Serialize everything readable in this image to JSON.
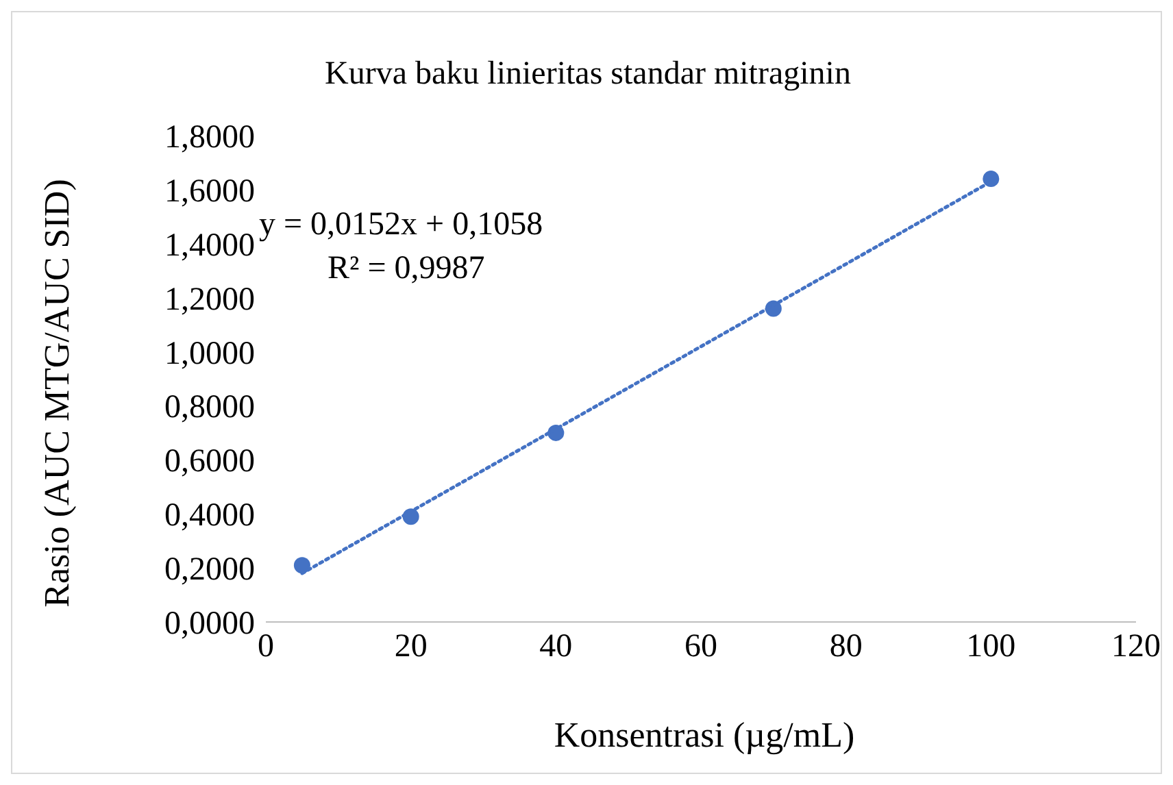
{
  "chart_data": {
    "type": "scatter",
    "title": "Kurva baku linieritas standar mitraginin",
    "xlabel": "Konsentrasi (µg/mL)",
    "ylabel": "Rasio (AUC MTG/AUC SID)",
    "annotations": [
      "y = 0,0152x + 0,1058",
      "R² = 0,9987"
    ],
    "xlim": [
      0,
      120
    ],
    "xticks": [
      0,
      20,
      40,
      60,
      80,
      100,
      120
    ],
    "ylim": [
      0,
      1.8
    ],
    "yticks": [
      {
        "value": 0,
        "label": "0,0000"
      },
      {
        "value": 0.2,
        "label": "0,2000"
      },
      {
        "value": 0.4,
        "label": "0,4000"
      },
      {
        "value": 0.6,
        "label": "0,6000"
      },
      {
        "value": 0.8,
        "label": "0,8000"
      },
      {
        "value": 1,
        "label": "1,0000"
      },
      {
        "value": 1.2,
        "label": "1,2000"
      },
      {
        "value": 1.4,
        "label": "1,4000"
      },
      {
        "value": 1.6,
        "label": "1,6000"
      },
      {
        "value": 1.8,
        "label": "1,8000"
      }
    ],
    "grid": false,
    "series": [
      {
        "type": "scatter",
        "color": "#4472c4",
        "marker": "circle",
        "x": [
          5,
          20,
          40,
          70,
          100
        ],
        "values": [
          0.21,
          0.39,
          0.7,
          1.16,
          1.64
        ]
      },
      {
        "type": "line",
        "color": "#4472c4",
        "marker": "none",
        "line_style": "dotted",
        "x": [
          5,
          100
        ],
        "values": [
          0.18,
          1.63
        ]
      }
    ]
  }
}
